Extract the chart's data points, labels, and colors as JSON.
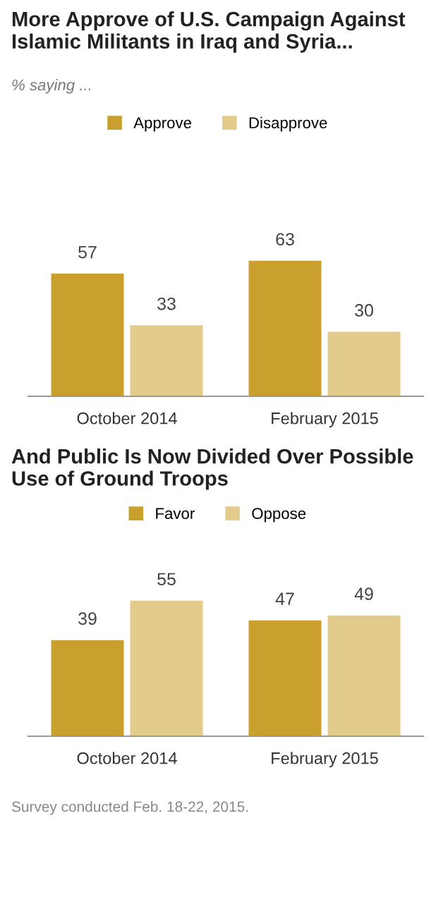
{
  "chart_data": [
    {
      "type": "bar",
      "title": "More Approve of U.S. Campaign Against Islamic Militants in Iraq and Syria...",
      "subtitle": "% saying ...",
      "categories": [
        "October 2014",
        "February 2015"
      ],
      "series": [
        {
          "name": "Approve",
          "color": "#c9a02e",
          "values": [
            57,
            63
          ]
        },
        {
          "name": "Disapprove",
          "color": "#e3cc8b",
          "values": [
            33,
            30
          ]
        }
      ],
      "data_labels": true,
      "legend": "top",
      "grid": false
    },
    {
      "type": "bar",
      "title": "And Public Is Now Divided Over Possible Use of Ground Troops",
      "categories": [
        "October 2014",
        "February 2015"
      ],
      "series": [
        {
          "name": "Favor",
          "color": "#c9a02e",
          "values": [
            39,
            47
          ]
        },
        {
          "name": "Oppose",
          "color": "#e3cc8b",
          "values": [
            55,
            49
          ]
        }
      ],
      "data_labels": true,
      "legend": "top",
      "grid": false,
      "annotations": [
        "Survey conducted Feb. 18-22, 2015."
      ]
    }
  ]
}
